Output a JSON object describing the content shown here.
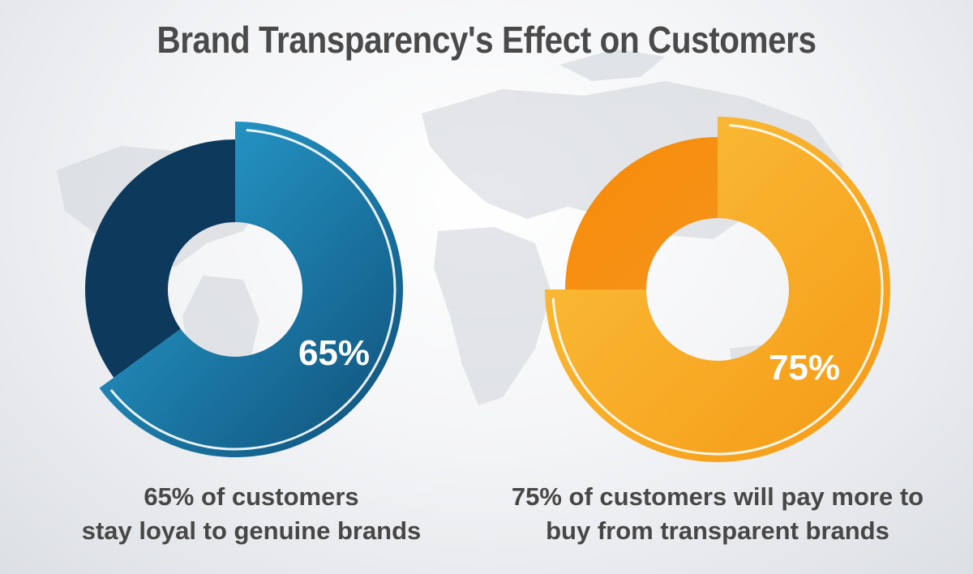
{
  "title": "Brand Transparency's Effect on Customers",
  "colors": {
    "blue_highlight_start": "#2aa6d8",
    "blue_highlight_end": "#0f4f78",
    "blue_dark": "#0d3a5c",
    "orange_highlight_start": "#fbc13c",
    "orange_highlight_end": "#f59a16",
    "orange_dark": "#f58a07",
    "title_text": "#4a4a4a",
    "caption_text": "#474747"
  },
  "chart_data": [
    {
      "type": "pie",
      "title": "",
      "categories": [
        "65%",
        ""
      ],
      "values": [
        65,
        35
      ],
      "value_label": "65%",
      "caption_line1": "65% of customers",
      "caption_line2": "stay loyal to genuine brands"
    },
    {
      "type": "pie",
      "title": "",
      "categories": [
        "75%",
        ""
      ],
      "values": [
        75,
        25
      ],
      "value_label": "75%",
      "caption_line1": "75% of customers will pay more to",
      "caption_line2": "buy from transparent brands"
    }
  ]
}
